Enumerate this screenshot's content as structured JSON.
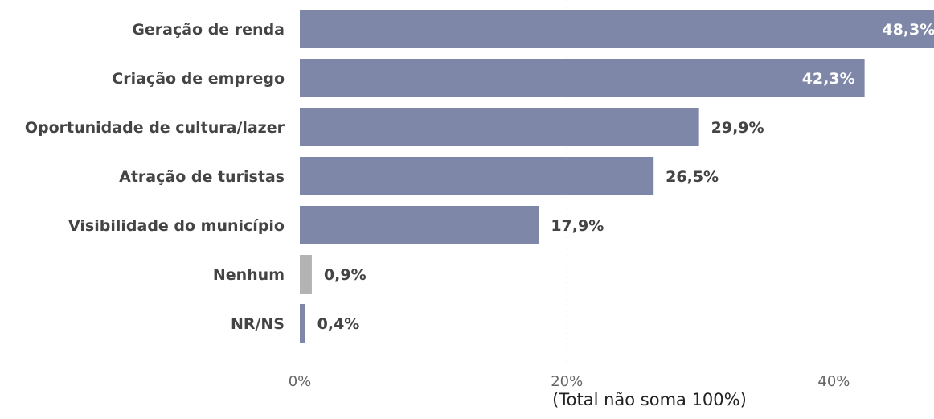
{
  "chart_data": {
    "type": "bar",
    "orientation": "horizontal",
    "categories": [
      "Geração de renda",
      "Criação de emprego",
      "Oportunidade de cultura/lazer",
      "Atração de turistas",
      "Visibilidade do município",
      "Nenhum",
      "NR/NS"
    ],
    "values": [
      48.3,
      42.3,
      29.9,
      26.5,
      17.9,
      0.9,
      0.4
    ],
    "value_labels": [
      "48,3%",
      "42,3%",
      "29,9%",
      "26,5%",
      "17,9%",
      "0,9%",
      "0,4%"
    ],
    "bar_colors": [
      "#7f87a8",
      "#7f87a8",
      "#7f87a8",
      "#7f87a8",
      "#7f87a8",
      "#b3b3b3",
      "#7f87a8"
    ],
    "xticks": [
      0,
      20,
      40
    ],
    "xtick_labels": [
      "0%",
      "20%",
      "40%"
    ],
    "xlim": [
      0,
      47.5
    ],
    "xlabel": "(Total não soma 100%)",
    "grid": "vertical-dashed",
    "inside_label_color": "#ffffff",
    "outside_label_color": "#444444"
  }
}
